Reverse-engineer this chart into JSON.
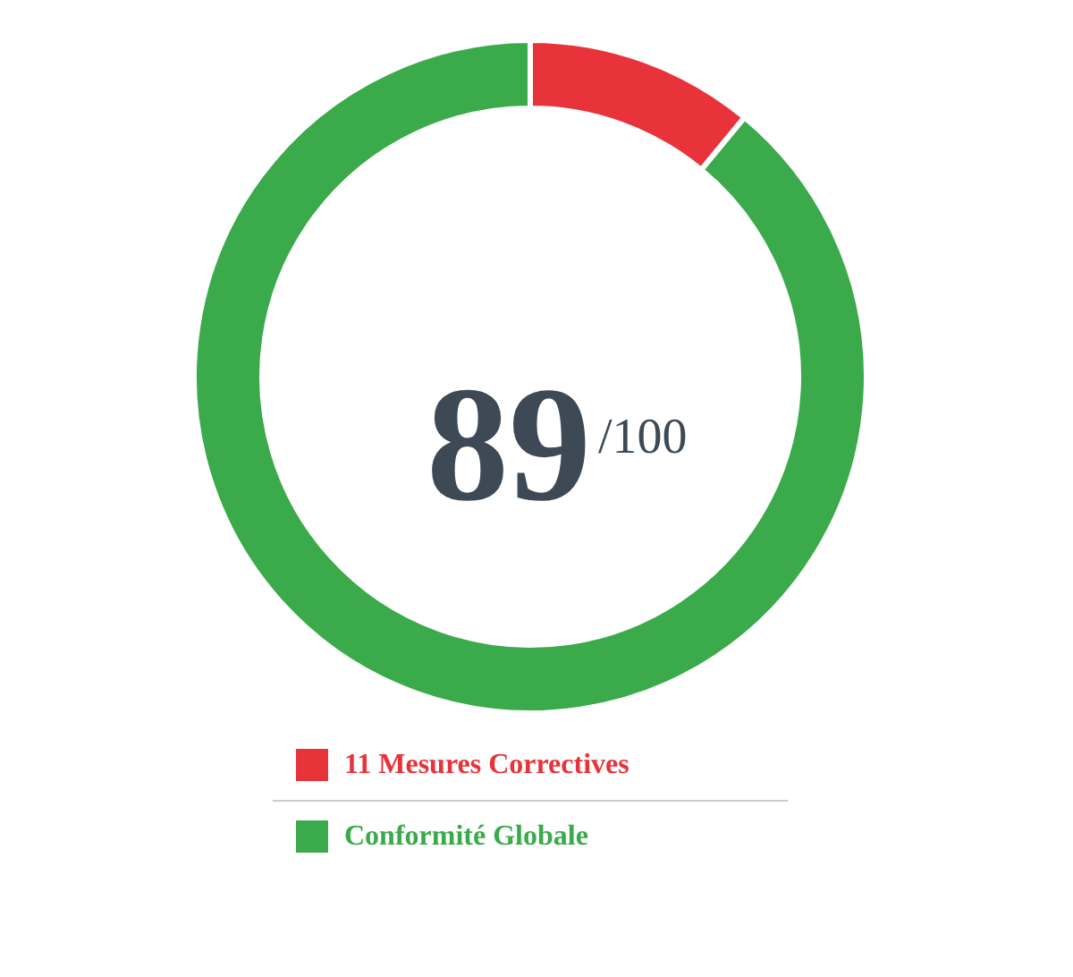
{
  "chart_data": {
    "type": "donut",
    "categories": [
      "11 Mesures Correctives",
      "Conformité Globale"
    ],
    "values": [
      11,
      89
    ],
    "colors": [
      "#e8333a",
      "#3aaa4a"
    ],
    "annotations": [
      "89",
      "/100"
    ],
    "legend": "bottom"
  }
}
